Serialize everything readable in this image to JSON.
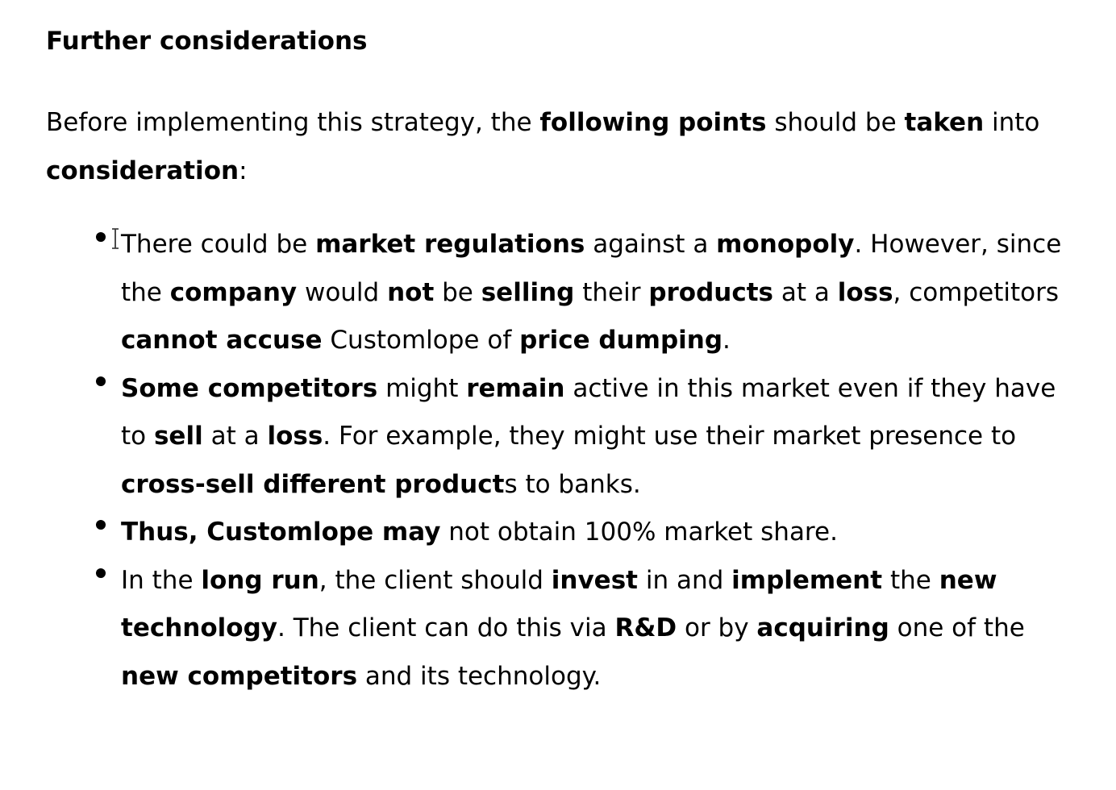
{
  "document": {
    "heading": "Further considerations",
    "intro": [
      {
        "t": "Before implementing this strategy, the ",
        "b": false
      },
      {
        "t": "following points",
        "b": true
      },
      {
        "t": " should be ",
        "b": false
      },
      {
        "t": "taken",
        "b": true
      },
      {
        "t": " into ",
        "b": false
      },
      {
        "t": "consideration",
        "b": true
      },
      {
        "t": ":",
        "b": false
      }
    ],
    "bullets": [
      [
        {
          "t": "There could be ",
          "b": false
        },
        {
          "t": "market regulations",
          "b": true
        },
        {
          "t": " against a ",
          "b": false
        },
        {
          "t": "monopoly",
          "b": true
        },
        {
          "t": ". However, since the ",
          "b": false
        },
        {
          "t": "company",
          "b": true
        },
        {
          "t": " would ",
          "b": false
        },
        {
          "t": "not",
          "b": true
        },
        {
          "t": " be ",
          "b": false
        },
        {
          "t": "selling",
          "b": true
        },
        {
          "t": " their ",
          "b": false
        },
        {
          "t": "products",
          "b": true
        },
        {
          "t": " at a ",
          "b": false
        },
        {
          "t": "loss",
          "b": true
        },
        {
          "t": ", competitors ",
          "b": false
        },
        {
          "t": "cannot accuse",
          "b": true
        },
        {
          "t": " Customlope of ",
          "b": false
        },
        {
          "t": "price dumping",
          "b": true
        },
        {
          "t": ".",
          "b": false
        }
      ],
      [
        {
          "t": "Some competitors",
          "b": true
        },
        {
          "t": " might ",
          "b": false
        },
        {
          "t": "remain",
          "b": true
        },
        {
          "t": " active in this market even if they have to ",
          "b": false
        },
        {
          "t": "sell",
          "b": true
        },
        {
          "t": " at a ",
          "b": false
        },
        {
          "t": "loss",
          "b": true
        },
        {
          "t": ". For example, they might use their market presence to ",
          "b": false
        },
        {
          "t": "cross-sell different product",
          "b": true
        },
        {
          "t": "s to banks.",
          "b": false
        }
      ],
      [
        {
          "t": "Thus, Customlope may",
          "b": true
        },
        {
          "t": " not obtain 100% market share.",
          "b": false
        }
      ],
      [
        {
          "t": "In the ",
          "b": false
        },
        {
          "t": "long run",
          "b": true
        },
        {
          "t": ", the client should ",
          "b": false
        },
        {
          "t": "invest",
          "b": true
        },
        {
          "t": " in and ",
          "b": false
        },
        {
          "t": "implement",
          "b": true
        },
        {
          "t": " the ",
          "b": false
        },
        {
          "t": "new technology",
          "b": true
        },
        {
          "t": ". The client can do this via ",
          "b": false
        },
        {
          "t": "R&D",
          "b": true
        },
        {
          "t": " or by ",
          "b": false
        },
        {
          "t": "acquiring",
          "b": true
        },
        {
          "t": " one of the ",
          "b": false
        },
        {
          "t": "new competitors",
          "b": true
        },
        {
          "t": " and its technology.",
          "b": false
        }
      ]
    ]
  },
  "icons": {
    "text_cursor": "i-beam-cursor-icon"
  },
  "colors": {
    "text": "#000000",
    "background": "#ffffff"
  }
}
